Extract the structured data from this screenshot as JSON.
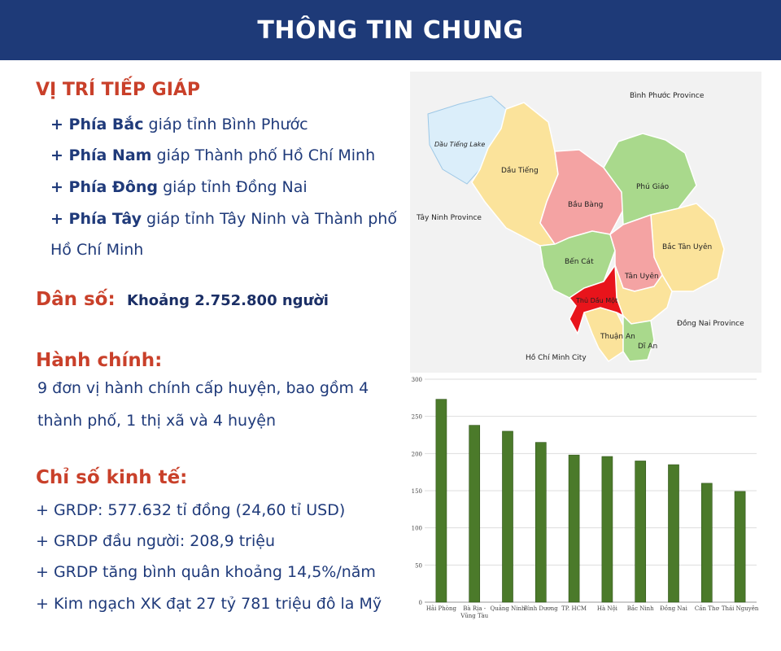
{
  "header": {
    "title": "THÔNG TIN CHUNG"
  },
  "location": {
    "title": "VỊ TRÍ TIẾP GIÁP",
    "north": {
      "dir": "+ Phía Bắc",
      "text": " giáp tỉnh Bình Phước"
    },
    "south": {
      "dir": "+ Phía Nam",
      "text": " giáp Thành phố Hồ Chí Minh"
    },
    "east": {
      "dir": "+ Phía Đông",
      "text": " giáp tỉnh Đồng Nai"
    },
    "west": {
      "dir": "+ Phía Tây",
      "text": " giáp tỉnh Tây Ninh và Thành phố",
      "text2": "Hồ Chí Minh"
    }
  },
  "population": {
    "label": "Dân số:",
    "value": "Khoảng 2.752.800 người"
  },
  "admin": {
    "title": "Hành chính:",
    "line1": "9 đơn vị hành chính cấp huyện, bao gồm 4",
    "line2": "thành phố, 1 thị xã và 4 huyện"
  },
  "economy": {
    "title": "Chỉ số kinh tế:",
    "items": [
      "+ GRDP: 577.632 tỉ đồng (24,60 tỉ USD)",
      "+ GRDP đầu người: 208,9 triệu",
      "+ GRDP tăng bình quân khoảng 14,5%/năm",
      "+ Kim ngạch XK đạt 27 tỷ 781 triệu đô la Mỹ"
    ]
  },
  "map": {
    "labels": {
      "binh_phuoc": "Bình Phước Province",
      "dau_tieng_lake": "Dầu Tiếng Lake",
      "dau_tieng": "Dầu Tiếng",
      "phu_giao": "Phú Giáo",
      "bau_bang": "Bầu Bàng",
      "tay_ninh": "Tây Ninh Province",
      "bac_tan_uyen": "Bắc Tân Uyên",
      "ben_cat": "Bến Cát",
      "tan_uyen": "Tân Uyên",
      "thu_dau_mot": "Thủ Dầu Một",
      "dong_nai": "Đồng Nai Province",
      "thuan_an": "Thuận An",
      "di_an": "Dĩ An",
      "hcm": "Hồ Chí Minh City"
    },
    "colors": {
      "yellow": "#fbe39b",
      "pink": "#f4a3a3",
      "green": "#a9d98c",
      "red": "#e8141b",
      "lake": "#dbeefa"
    }
  },
  "chart_data": {
    "type": "bar",
    "categories": [
      "Hải Phòng",
      "Bà Rịa - Vũng Tàu",
      "Quảng Ninh",
      "Bình Dương",
      "TP. HCM",
      "Hà Nội",
      "Bắc Ninh",
      "Đồng Nai",
      "Cần Thơ",
      "Thái Nguyên"
    ],
    "category_lines": [
      [
        "Hải Phòng"
      ],
      [
        "Bà Rịa -",
        "Vũng Tàu"
      ],
      [
        "Quảng Ninh"
      ],
      [
        "Bình Dương"
      ],
      [
        "TP. HCM"
      ],
      [
        "Hà Nội"
      ],
      [
        "Bắc Ninh"
      ],
      [
        "Đồng Nai"
      ],
      [
        "Cần Thơ"
      ],
      [
        "Thái Nguyên"
      ]
    ],
    "values": [
      273,
      238,
      230,
      215,
      198,
      196,
      190,
      185,
      160,
      149
    ],
    "ylim": [
      0,
      300
    ],
    "yticks": [
      0,
      50,
      100,
      150,
      200,
      250,
      300
    ],
    "grid": true,
    "bar_color": "#4b7a2a"
  }
}
